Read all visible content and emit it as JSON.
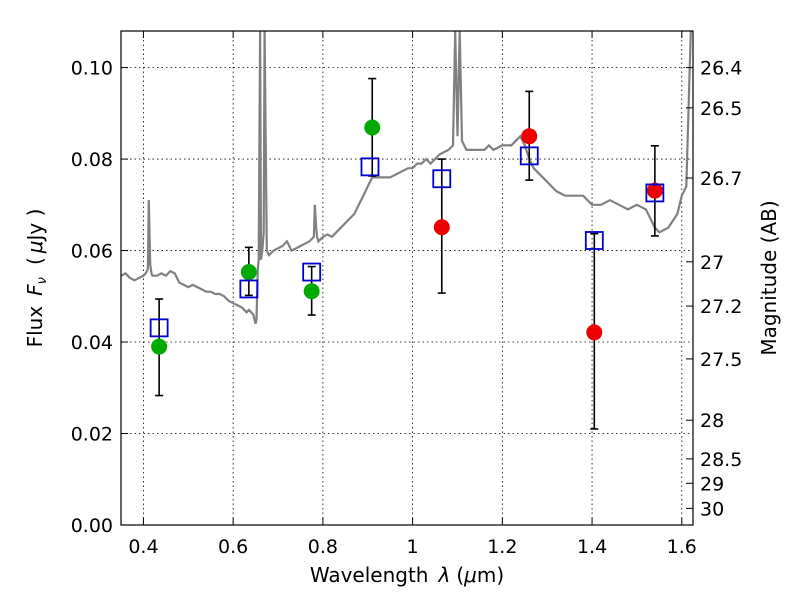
{
  "chart_data": {
    "type": "scatter",
    "xlabel_text": "Wavelength",
    "xlabel_symbol": "λ",
    "xlabel_unit_pre": "(",
    "xlabel_unit_mu": "μ",
    "xlabel_unit_post": "m)",
    "ylabel_text": "Flux",
    "ylabel_symbol": "F",
    "ylabel_sub": "ν",
    "ylabel_unit_pre": "(",
    "ylabel_unit_mu": "μ",
    "ylabel_unit_post": "Jy )",
    "y2label": "Magnitude (AB)",
    "xlim": [
      0.35,
      1.625
    ],
    "ylim": [
      0.0,
      0.108
    ],
    "grid": true,
    "x_ticks": [
      0.4,
      0.6,
      0.8,
      1.0,
      1.2,
      1.4,
      1.6
    ],
    "x_tick_labels": [
      "0.4",
      "0.6",
      "0.8",
      "1",
      "1.2",
      "1.4",
      "1.6"
    ],
    "y_ticks": [
      0.0,
      0.02,
      0.04,
      0.06,
      0.08,
      0.1
    ],
    "y_tick_labels": [
      "0.00",
      "0.02",
      "0.04",
      "0.06",
      "0.08",
      "0.10"
    ],
    "y2_ticks": [
      26.4,
      26.5,
      26.7,
      27,
      27.2,
      27.5,
      28,
      28.5,
      29,
      30
    ],
    "y2_tick_labels": [
      "26.4",
      "26.5",
      "26.7",
      "27",
      "27.2",
      "27.5",
      "28",
      "28.5",
      "29",
      "30"
    ],
    "y2_zeropoint": 23.9,
    "colors": {
      "spectrum": "#808080",
      "model": "#0000cc",
      "detection": "#00aa00",
      "upper": "#ee0000",
      "errorbar": "#000000",
      "grid": "#000000"
    },
    "series": [
      {
        "kind": "model_photometry",
        "marker": "open-square",
        "x": [
          0.435,
          0.635,
          0.775,
          0.905,
          1.065,
          1.26,
          1.405,
          1.54
        ],
        "y": [
          0.0431,
          0.0516,
          0.0553,
          0.0783,
          0.0757,
          0.0807,
          0.0622,
          0.0726
        ]
      },
      {
        "kind": "observed_green",
        "marker": "filled-circle",
        "x": [
          0.435,
          0.635,
          0.775,
          0.91
        ],
        "y": [
          0.039,
          0.0553,
          0.0511,
          0.0869
        ],
        "yerr_low": [
          0.0107,
          0.0051,
          0.0052,
          0.0106
        ],
        "yerr_high": [
          0.0104,
          0.0054,
          0.0054,
          0.0107
        ]
      },
      {
        "kind": "observed_red",
        "marker": "filled-circle",
        "x": [
          1.065,
          1.26,
          1.405,
          1.54
        ],
        "y": [
          0.0651,
          0.085,
          0.0421,
          0.0731
        ],
        "yerr_low": [
          0.0144,
          0.0096,
          0.0211,
          0.0099
        ],
        "yerr_high": [
          0.0149,
          0.0098,
          0.0216,
          0.0098
        ]
      }
    ],
    "spectrum": {
      "x": [
        0.35,
        0.36,
        0.37,
        0.38,
        0.39,
        0.4,
        0.405,
        0.41,
        0.412,
        0.415,
        0.418,
        0.42,
        0.43,
        0.44,
        0.45,
        0.46,
        0.47,
        0.48,
        0.49,
        0.5,
        0.51,
        0.52,
        0.53,
        0.54,
        0.55,
        0.56,
        0.57,
        0.58,
        0.59,
        0.6,
        0.61,
        0.62,
        0.63,
        0.635,
        0.645,
        0.65,
        0.652,
        0.655,
        0.657,
        0.66,
        0.662,
        0.665,
        0.668,
        0.67,
        0.675,
        0.68,
        0.69,
        0.7,
        0.71,
        0.72,
        0.73,
        0.74,
        0.75,
        0.76,
        0.77,
        0.78,
        0.782,
        0.785,
        0.787,
        0.79,
        0.8,
        0.81,
        0.82,
        0.83,
        0.84,
        0.85,
        0.86,
        0.87,
        0.88,
        0.89,
        0.9,
        0.91,
        0.93,
        0.95,
        0.97,
        0.99,
        1.0,
        1.01,
        1.02,
        1.03,
        1.04,
        1.06,
        1.08,
        1.09,
        1.095,
        1.1,
        1.105,
        1.11,
        1.12,
        1.14,
        1.16,
        1.17,
        1.18,
        1.2,
        1.22,
        1.23,
        1.24,
        1.25,
        1.26,
        1.27,
        1.28,
        1.3,
        1.32,
        1.34,
        1.36,
        1.38,
        1.4,
        1.42,
        1.44,
        1.46,
        1.48,
        1.5,
        1.52,
        1.54,
        1.55,
        1.57,
        1.59,
        1.6,
        1.61,
        1.62
      ],
      "y": [
        0.0545,
        0.055,
        0.054,
        0.0535,
        0.054,
        0.0545,
        0.055,
        0.056,
        0.071,
        0.057,
        0.055,
        0.0545,
        0.0545,
        0.055,
        0.0545,
        0.0555,
        0.055,
        0.053,
        0.0525,
        0.052,
        0.0525,
        0.052,
        0.0515,
        0.051,
        0.051,
        0.0505,
        0.0505,
        0.05,
        0.049,
        0.0485,
        0.048,
        0.0475,
        0.0465,
        0.047,
        0.046,
        0.044,
        0.045,
        0.056,
        0.058,
        0.108,
        0.058,
        0.06,
        0.064,
        0.108,
        0.06,
        0.059,
        0.06,
        0.0605,
        0.061,
        0.062,
        0.06,
        0.0605,
        0.061,
        0.0615,
        0.062,
        0.063,
        0.07,
        0.065,
        0.063,
        0.062,
        0.063,
        0.0635,
        0.063,
        0.064,
        0.065,
        0.066,
        0.067,
        0.068,
        0.07,
        0.072,
        0.074,
        0.076,
        0.076,
        0.076,
        0.077,
        0.078,
        0.078,
        0.079,
        0.079,
        0.08,
        0.079,
        0.081,
        0.082,
        0.083,
        0.108,
        0.085,
        0.108,
        0.084,
        0.082,
        0.082,
        0.082,
        0.083,
        0.082,
        0.083,
        0.083,
        0.084,
        0.085,
        0.083,
        0.08,
        0.078,
        0.077,
        0.075,
        0.073,
        0.072,
        0.072,
        0.072,
        0.07,
        0.07,
        0.071,
        0.07,
        0.069,
        0.07,
        0.069,
        0.065,
        0.064,
        0.065,
        0.068,
        0.072,
        0.074,
        0.108
      ]
    }
  }
}
